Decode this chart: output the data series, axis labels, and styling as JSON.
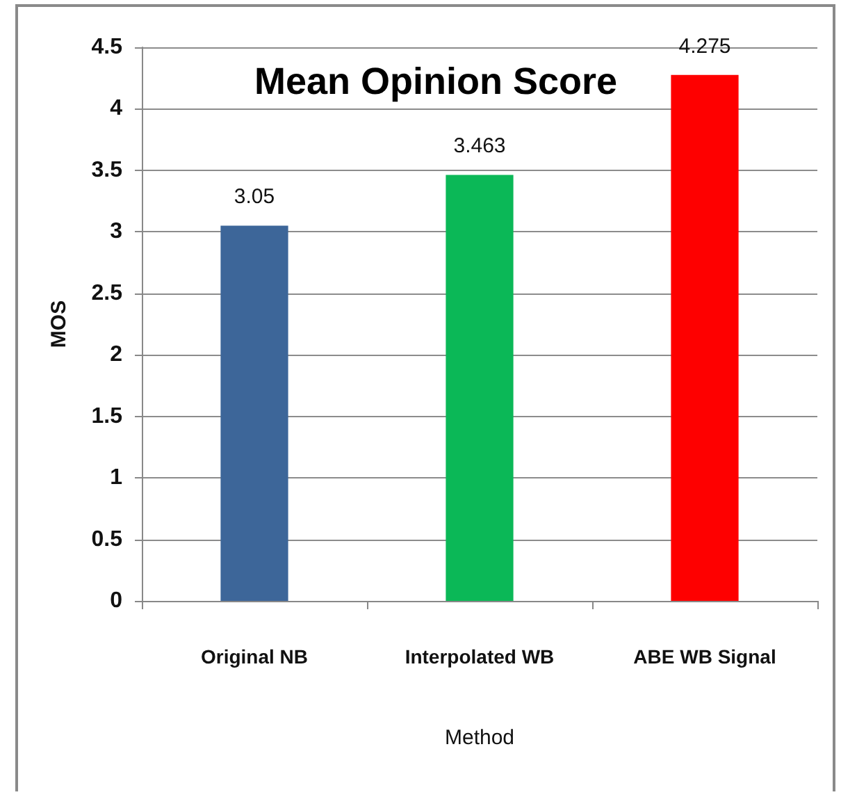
{
  "chart_data": {
    "type": "bar",
    "title": "Mean Opinion Score",
    "xlabel": "Method",
    "ylabel": "MOS",
    "categories": [
      "Original NB",
      "Interpolated WB",
      "ABE WB Signal"
    ],
    "values": [
      3.05,
      3.463,
      4.275
    ],
    "colors": [
      "#3d6699",
      "#0bb857",
      "#fe0000"
    ],
    "ylim": [
      0,
      4.5
    ],
    "yticks": [
      0,
      0.5,
      1,
      1.5,
      2,
      2.5,
      3,
      3.5,
      4,
      4.5
    ],
    "grid": "y",
    "data_labels": true
  }
}
